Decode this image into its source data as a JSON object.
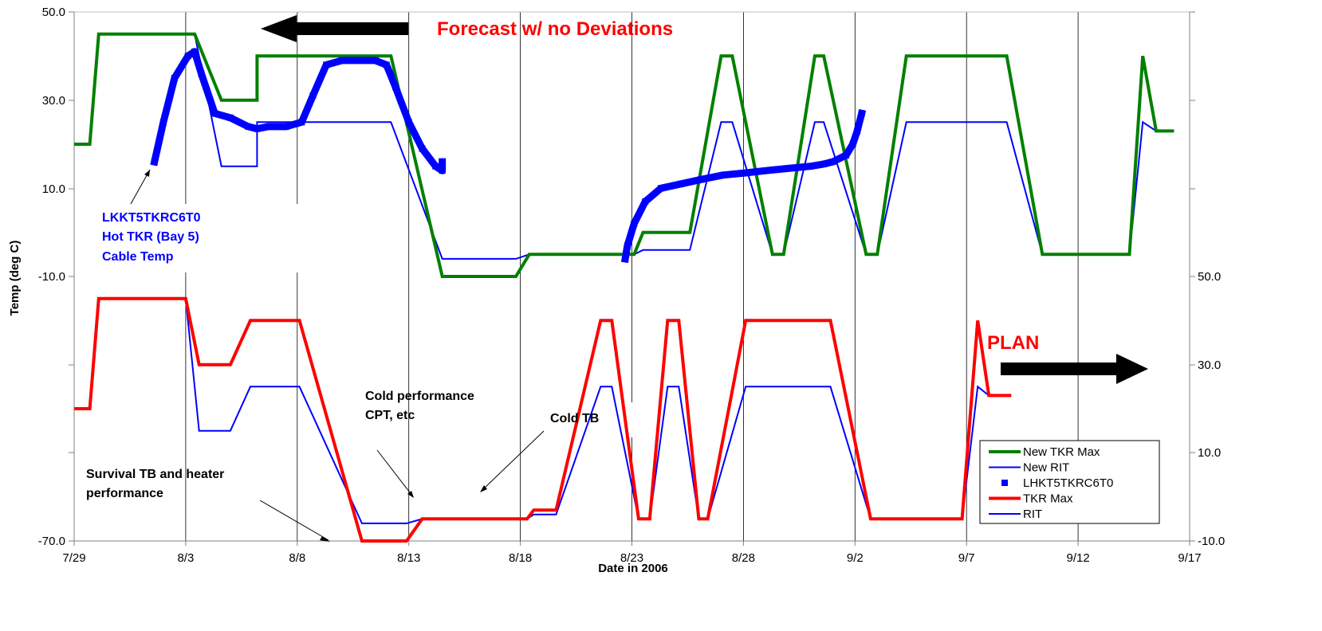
{
  "chart_data": [
    {
      "type": "line",
      "panel": "upper",
      "y_axis_side": "left",
      "ylabel": "Temp (deg C)",
      "xlabel": "Date in 2006",
      "x_ticks": [
        "7/29",
        "8/3",
        "8/8",
        "8/13",
        "8/18",
        "8/23",
        "8/28",
        "9/2",
        "9/7",
        "9/12",
        "9/17"
      ],
      "y_ticks": [
        "50.0",
        "30.0",
        "10.0",
        "-10.0",
        "-70.0"
      ],
      "ylim": [
        -70,
        50
      ],
      "grid": "vertical",
      "series": [
        {
          "name": "New TKR Max",
          "color": "#008000",
          "width": 4,
          "points": [
            [
              0,
              20
            ],
            [
              0.7,
              20
            ],
            [
              1.1,
              45
            ],
            [
              5.4,
              45
            ],
            [
              6.6,
              30
            ],
            [
              8.2,
              30
            ],
            [
              8.2,
              40
            ],
            [
              14.2,
              40
            ],
            [
              16.5,
              -10
            ],
            [
              19.8,
              -10
            ],
            [
              20.4,
              -5
            ],
            [
              25.1,
              -5
            ],
            [
              25.5,
              0
            ],
            [
              27.6,
              0
            ],
            [
              29.0,
              40
            ],
            [
              29.5,
              40
            ],
            [
              31.3,
              -5
            ],
            [
              31.8,
              -5
            ],
            [
              33.2,
              40
            ],
            [
              33.6,
              40
            ],
            [
              35.5,
              -5
            ],
            [
              36.0,
              -5
            ],
            [
              37.3,
              40
            ],
            [
              41.8,
              40
            ],
            [
              43.4,
              -5
            ],
            [
              47.3,
              -5
            ],
            [
              47.9,
              40
            ],
            [
              48.5,
              23
            ],
            [
              49.3,
              23
            ]
          ]
        },
        {
          "name": "New RIT",
          "color": "#0000ff",
          "width": 2,
          "points": [
            [
              0,
              20
            ],
            [
              0.7,
              20
            ],
            [
              1.1,
              45
            ],
            [
              5.4,
              45
            ],
            [
              6.6,
              15
            ],
            [
              8.2,
              15
            ],
            [
              8.2,
              25
            ],
            [
              14.2,
              25
            ],
            [
              16.5,
              -6
            ],
            [
              19.8,
              -6
            ],
            [
              20.4,
              -5
            ],
            [
              25.1,
              -5
            ],
            [
              25.5,
              -4
            ],
            [
              27.6,
              -4
            ],
            [
              29.0,
              25
            ],
            [
              29.5,
              25
            ],
            [
              31.3,
              -5
            ],
            [
              31.8,
              -5
            ],
            [
              33.2,
              25
            ],
            [
              33.6,
              25
            ],
            [
              35.5,
              -5
            ],
            [
              36.0,
              -5
            ],
            [
              37.3,
              25
            ],
            [
              41.8,
              25
            ],
            [
              43.4,
              -5
            ],
            [
              47.3,
              -5
            ],
            [
              47.9,
              25
            ],
            [
              48.5,
              23
            ],
            [
              49.3,
              23
            ]
          ]
        },
        {
          "name": "LHKT5TKRC6T0",
          "color": "#0000ff",
          "style": "square-markers",
          "points": [
            [
              3.6,
              16
            ],
            [
              4.0,
              25
            ],
            [
              4.5,
              35
            ],
            [
              5.1,
              40
            ],
            [
              5.4,
              41
            ],
            [
              5.7,
              36
            ],
            [
              6.3,
              27
            ],
            [
              7.0,
              26
            ],
            [
              7.8,
              24
            ],
            [
              8.2,
              23.5
            ],
            [
              8.7,
              24
            ],
            [
              9.5,
              24
            ],
            [
              10.2,
              25
            ],
            [
              10.7,
              31
            ],
            [
              11.3,
              38
            ],
            [
              12.0,
              39
            ],
            [
              12.7,
              39
            ],
            [
              13.5,
              39
            ],
            [
              14.0,
              38
            ],
            [
              14.4,
              33
            ],
            [
              15.0,
              25
            ],
            [
              15.6,
              19
            ],
            [
              16.2,
              15
            ],
            [
              16.5,
              14
            ],
            [
              16.5,
              15.5
            ],
            [
              16.5,
              16
            ]
          ]
        },
        {
          "name": "LHKT5TKRC6T0",
          "color": "#0000ff",
          "style": "square-markers",
          "points": [
            [
              24.7,
              -6
            ],
            [
              24.8,
              -3
            ],
            [
              25.1,
              2
            ],
            [
              25.6,
              7
            ],
            [
              26.3,
              10
            ],
            [
              27.2,
              11
            ],
            [
              28.1,
              12
            ],
            [
              29.1,
              13
            ],
            [
              30.1,
              13.5
            ],
            [
              31.0,
              14
            ],
            [
              32.0,
              14.5
            ],
            [
              33.0,
              15
            ],
            [
              33.6,
              15.5
            ],
            [
              34.0,
              16
            ],
            [
              34.6,
              17.5
            ],
            [
              34.9,
              20
            ],
            [
              35.1,
              23
            ],
            [
              35.3,
              27
            ]
          ]
        }
      ]
    },
    {
      "type": "line",
      "panel": "lower",
      "y_axis_side": "right",
      "y_ticks": [
        "50.0",
        "30.0",
        "10.0",
        "-10.0"
      ],
      "ylim": [
        -10,
        50
      ],
      "series": [
        {
          "name": "TKR Max",
          "color": "#ff0000",
          "width": 4,
          "points": [
            [
              0,
              20
            ],
            [
              0.7,
              20
            ],
            [
              1.1,
              45
            ],
            [
              5.0,
              45
            ],
            [
              5.6,
              30
            ],
            [
              7.0,
              30
            ],
            [
              7.9,
              40
            ],
            [
              10.1,
              40
            ],
            [
              12.9,
              -10
            ],
            [
              14.9,
              -10
            ],
            [
              15.6,
              -5
            ],
            [
              20.3,
              -5
            ],
            [
              20.6,
              -3
            ],
            [
              21.6,
              -3
            ],
            [
              23.6,
              40
            ],
            [
              24.1,
              40
            ],
            [
              25.3,
              -5
            ],
            [
              25.8,
              -5
            ],
            [
              26.6,
              40
            ],
            [
              27.1,
              40
            ],
            [
              28.0,
              -5
            ],
            [
              28.4,
              -5
            ],
            [
              30.1,
              40
            ],
            [
              33.9,
              40
            ],
            [
              35.7,
              -5
            ],
            [
              39.8,
              -5
            ],
            [
              40.5,
              40
            ],
            [
              41.0,
              23
            ],
            [
              42.0,
              23
            ]
          ]
        },
        {
          "name": "RIT",
          "color": "#0000ff",
          "width": 2,
          "points": [
            [
              0,
              20
            ],
            [
              0.7,
              20
            ],
            [
              1.1,
              45
            ],
            [
              5.0,
              45
            ],
            [
              5.6,
              15
            ],
            [
              7.0,
              15
            ],
            [
              7.9,
              25
            ],
            [
              10.1,
              25
            ],
            [
              12.9,
              -6
            ],
            [
              14.9,
              -6
            ],
            [
              15.6,
              -5
            ],
            [
              20.3,
              -5
            ],
            [
              20.6,
              -4
            ],
            [
              21.6,
              -4
            ],
            [
              23.6,
              25
            ],
            [
              24.1,
              25
            ],
            [
              25.3,
              -5
            ],
            [
              25.8,
              -5
            ],
            [
              26.6,
              25
            ],
            [
              27.1,
              25
            ],
            [
              28.0,
              -5
            ],
            [
              28.4,
              -5
            ],
            [
              30.1,
              25
            ],
            [
              33.9,
              25
            ],
            [
              35.7,
              -5
            ],
            [
              39.8,
              -5
            ],
            [
              40.5,
              25
            ],
            [
              41.0,
              23
            ],
            [
              42.0,
              23
            ]
          ]
        }
      ]
    }
  ],
  "annotations": {
    "forecast": "Forecast w/ no Deviations",
    "plan": "PLAN",
    "sensor_line1": "LKKT5TKRC6T0",
    "sensor_line2": "Hot TKR (Bay 5)",
    "sensor_line3": "Cable Temp",
    "survival_line1": "Survival TB and heater",
    "survival_line2": "performance",
    "cold_perf_line1": "Cold performance",
    "cold_perf_line2": "CPT, etc",
    "cold_tb": "Cold TB"
  },
  "legend": {
    "position": "bottom-right",
    "items": [
      {
        "label": "New TKR Max",
        "color": "#008000",
        "kind": "line-thick"
      },
      {
        "label": "New RIT",
        "color": "#0000ff",
        "kind": "line"
      },
      {
        "label": "LHKT5TKRC6T0",
        "color": "#0000ff",
        "kind": "marker"
      },
      {
        "label": "TKR Max",
        "color": "#ff0000",
        "kind": "line-thick"
      },
      {
        "label": "RIT",
        "color": "#0000ff",
        "kind": "line"
      }
    ]
  }
}
